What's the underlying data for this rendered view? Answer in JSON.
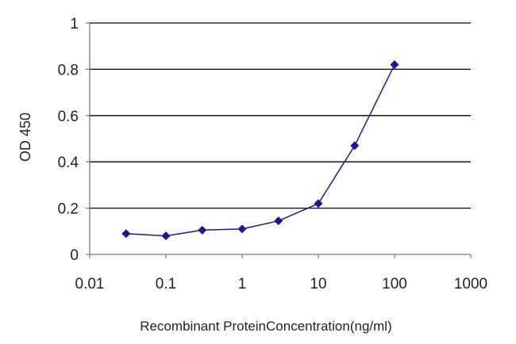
{
  "chart_data": {
    "type": "line",
    "xlabel": "Recombinant ProteinConcentration(ng/ml)",
    "ylabel": "OD 450",
    "x_scale": "log",
    "xlim": [
      0.01,
      1000
    ],
    "ylim": [
      0,
      1
    ],
    "x_ticks": [
      0.01,
      0.1,
      1,
      10,
      100,
      1000
    ],
    "x_tick_labels": [
      "0.01",
      "0.1",
      "1",
      "10",
      "100",
      "1000"
    ],
    "y_ticks": [
      0,
      0.2,
      0.4,
      0.6,
      0.8,
      1
    ],
    "y_tick_labels": [
      "0",
      "0.2",
      "0.4",
      "0.6",
      "0.8",
      "1"
    ],
    "grid": "horizontal",
    "legend": "none",
    "series": [
      {
        "x": [
          0.03,
          0.1,
          0.3,
          1,
          3,
          10,
          30,
          100
        ],
        "y": [
          0.09,
          0.08,
          0.105,
          0.11,
          0.145,
          0.22,
          0.47,
          0.82
        ],
        "color": "#1a1a8c",
        "marker": "diamond"
      }
    ],
    "colors": {
      "line": "#1a1a8c",
      "grid": "#000000",
      "axis": "#777777"
    }
  }
}
